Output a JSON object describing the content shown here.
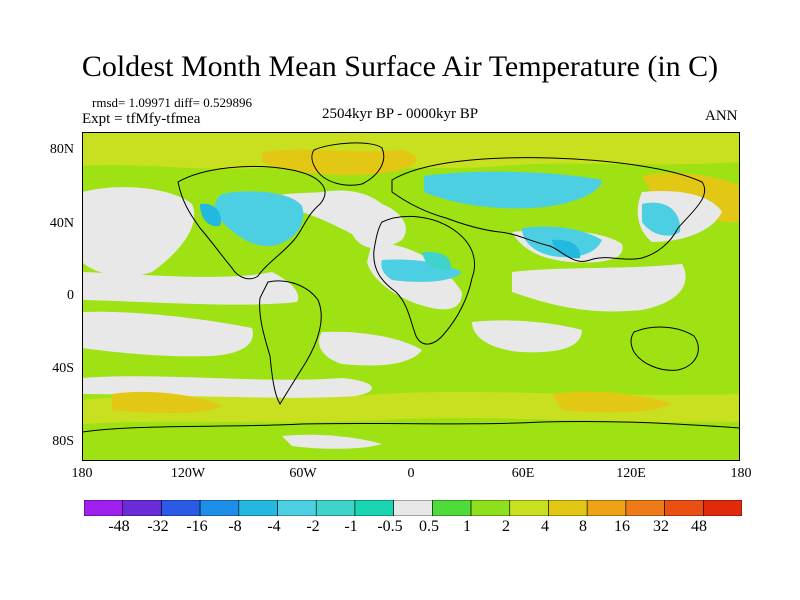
{
  "title": "Coldest Month Mean Surface Air Temperature (in C)",
  "stats": {
    "rmsd_text": "rmsd= 1.09971 diff= 0.529896"
  },
  "experiment": "Expt = tfMfy-tfmea",
  "period": "2504kyr BP - 0000kyr BP",
  "season": "ANN",
  "axes": {
    "lat_labels": [
      "80N",
      "40N",
      "0",
      "40S",
      "80S"
    ],
    "lon_labels": [
      "180",
      "120W",
      "60W",
      "0",
      "60E",
      "120E",
      "180"
    ]
  },
  "colorbar": {
    "labels": [
      "-48",
      "-32",
      "-16",
      "-8",
      "-4",
      "-2",
      "-1",
      "-0.5",
      "0.5",
      "1",
      "2",
      "4",
      "8",
      "16",
      "32",
      "48"
    ],
    "colors": [
      "#a020f0",
      "#6a2bd8",
      "#2a5ae6",
      "#1e8fe8",
      "#22b8e0",
      "#4dcfe3",
      "#3fd4c9",
      "#19d6b0",
      "#e8e8e8",
      "#4fdc3a",
      "#8fe01c",
      "#c9e020",
      "#e2c814",
      "#eca416",
      "#ee7a18",
      "#ea4f14",
      "#e02a0a"
    ]
  },
  "colors": {
    "land_outline": "#000000",
    "near_zero": "#e8e8e8",
    "warm_small": "#9ee214",
    "warm_mid": "#c9e020",
    "cool_small": "#3fd4c9"
  }
}
